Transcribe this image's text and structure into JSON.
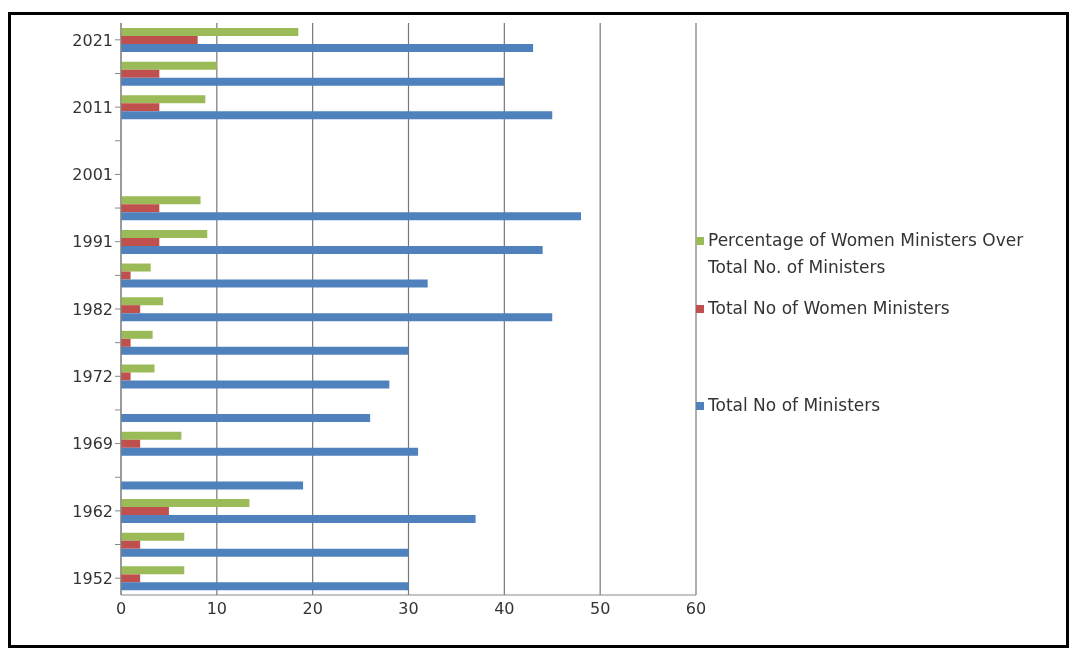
{
  "chart_data": {
    "type": "bar",
    "orientation": "horizontal",
    "categories": [
      "2021",
      null,
      "2011",
      null,
      "2001",
      null,
      "1991",
      null,
      "1982",
      null,
      "1972",
      null,
      "1969",
      null,
      "1962",
      null,
      "1952"
    ],
    "series": [
      {
        "name": "Percentage of Women Ministers Over Total No. of Ministers",
        "color": "#9bbb59",
        "values": [
          18.5,
          10,
          8.8,
          null,
          null,
          8.3,
          9,
          3.1,
          4.4,
          3.3,
          3.5,
          null,
          6.3,
          null,
          13.4,
          6.6,
          6.6
        ]
      },
      {
        "name": "Total No of Women Ministers",
        "color": "#c0504d",
        "values": [
          8,
          4,
          4,
          null,
          null,
          4,
          4,
          1,
          2,
          1,
          1,
          null,
          2,
          null,
          5,
          2,
          2
        ]
      },
      {
        "name": "Total No of Ministers",
        "color": "#4f81bd",
        "values": [
          43,
          40,
          45,
          null,
          null,
          48,
          44,
          32,
          45,
          30,
          28,
          26,
          31,
          19,
          37,
          30,
          30
        ]
      }
    ],
    "xlim": [
      0,
      60
    ],
    "xticks": [
      0,
      10,
      20,
      30,
      40,
      50,
      60
    ],
    "grid": "x",
    "legend": "right"
  }
}
